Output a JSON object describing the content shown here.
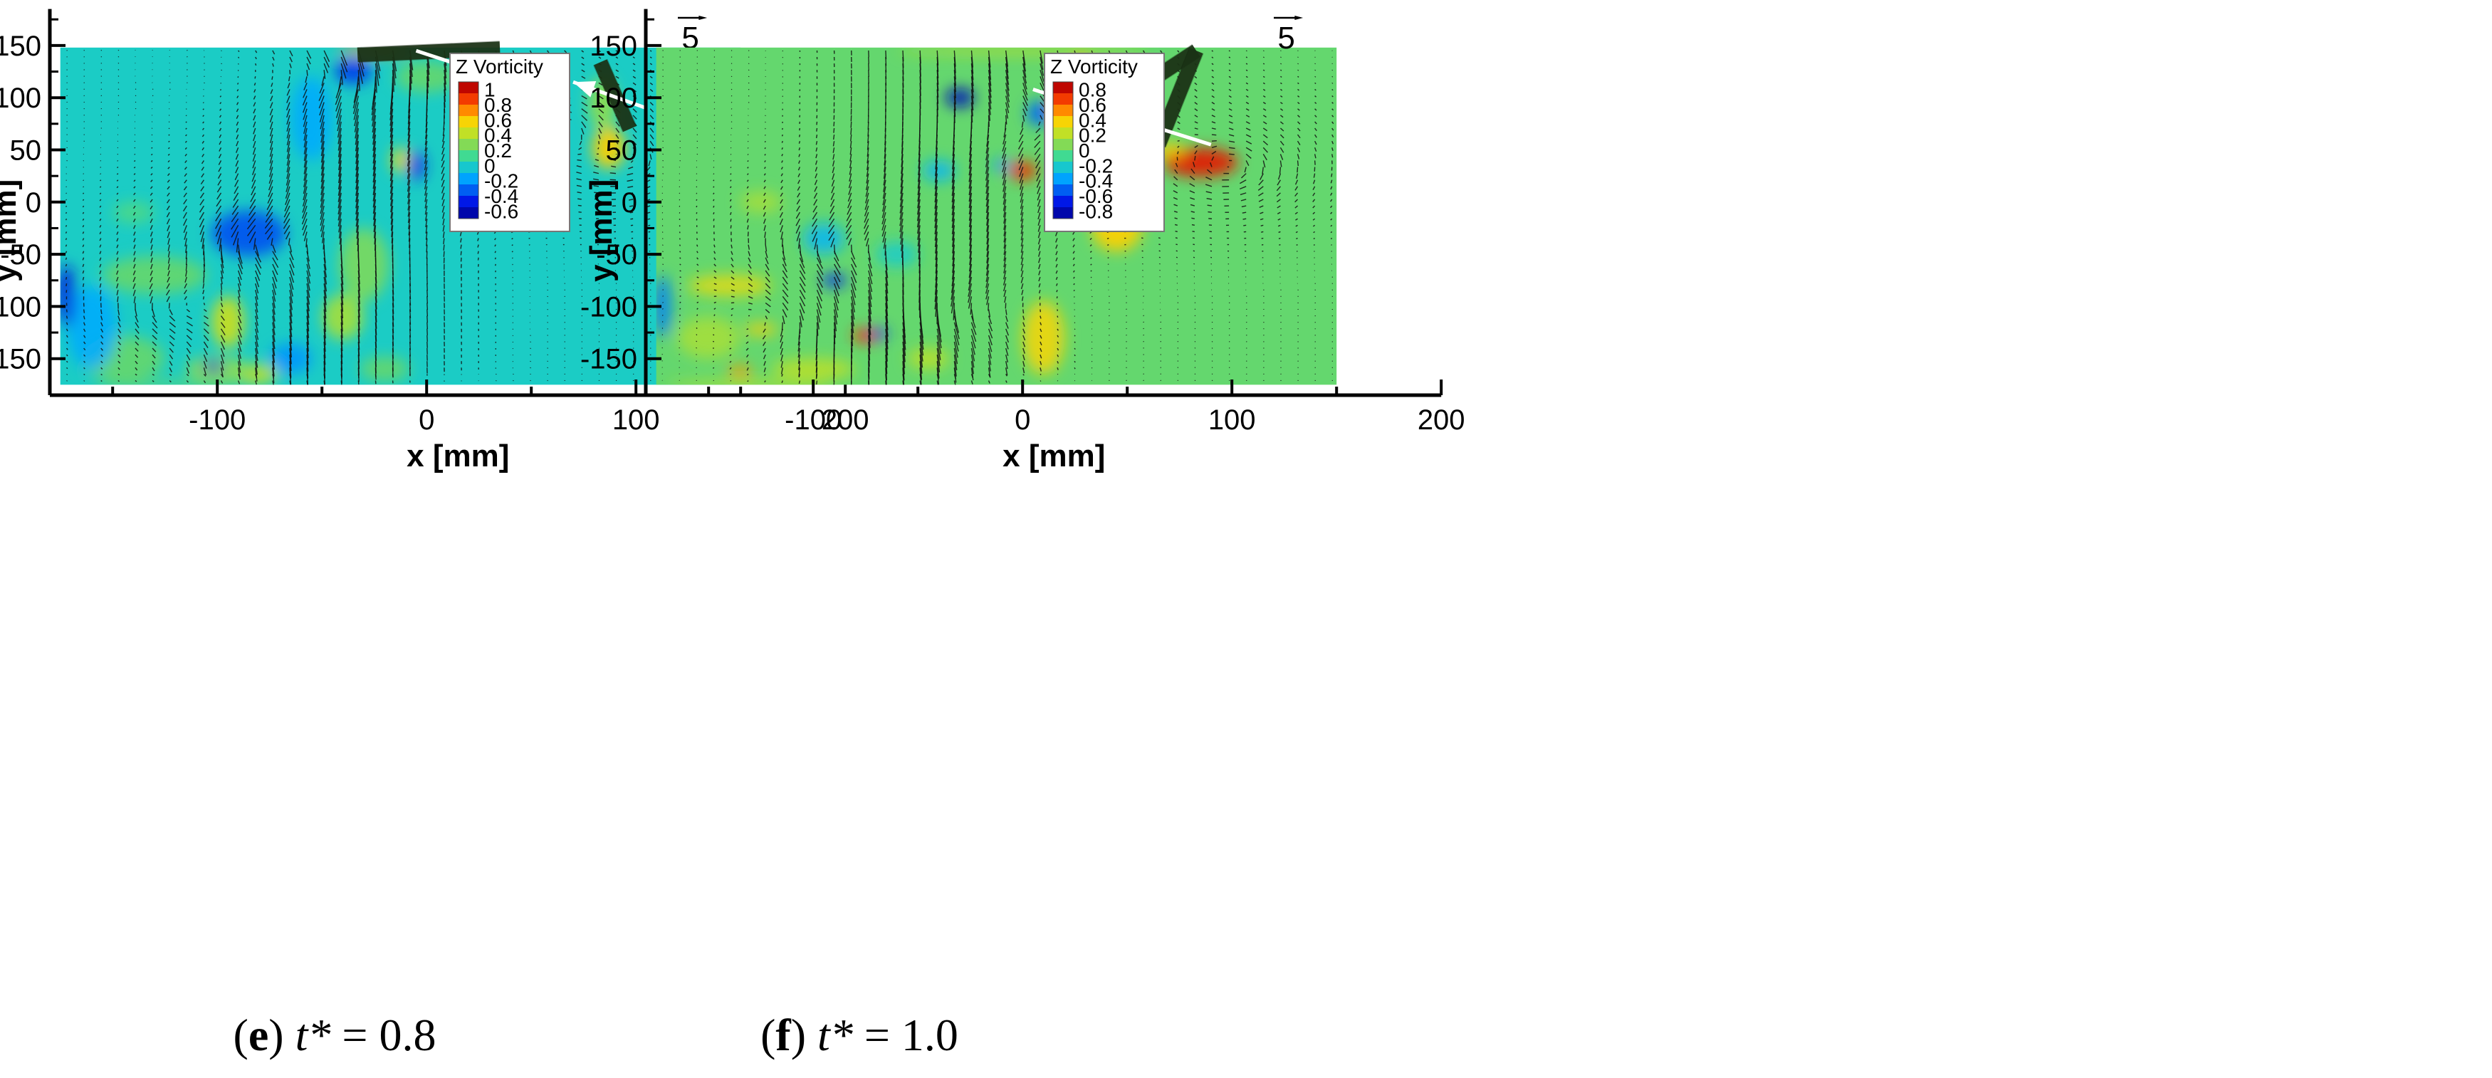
{
  "chart_data": [
    {
      "type": "vector-field-contour",
      "caption_letter": "e",
      "caption_rest": " = 0.8",
      "caption_var": "t*",
      "xlabel": "x [mm]",
      "ylabel": "y [mm]",
      "xlim": [
        -180,
        200
      ],
      "ylim": [
        -185,
        185
      ],
      "x_ticks": [
        -100,
        0,
        100,
        200
      ],
      "y_ticks": [
        150,
        100,
        50,
        0,
        -50,
        -100,
        -150
      ],
      "field_extent": {
        "x": [
          -175,
          150
        ],
        "y": [
          -175,
          148
        ]
      },
      "reference_vector_label": "5",
      "colorbar": {
        "title": "Z Vorticity",
        "levels": [
          "1",
          "0.8",
          "0.6",
          "0.4",
          "0.2",
          "0",
          "-0.2",
          "-0.4",
          "-0.6"
        ],
        "range": [
          -0.7,
          1.1
        ]
      },
      "plates": [
        {
          "x1": -33,
          "y1": 141,
          "x2": 35,
          "y2": 147
        },
        {
          "x1": 83,
          "y1": 134,
          "x2": 97,
          "y2": 70
        }
      ],
      "jets": [
        {
          "x1": -5,
          "y1": 145,
          "x2": 27,
          "y2": 124
        },
        {
          "x1": 105,
          "y1": 90,
          "x2": 70,
          "y2": 115
        }
      ],
      "blobs": [
        {
          "x": -25,
          "y": 145,
          "rx": 18,
          "ry": 4,
          "v": 0.7
        },
        {
          "x": -35,
          "y": 125,
          "rx": 9,
          "ry": 12,
          "v": -0.4
        },
        {
          "x": 87,
          "y": 52,
          "rx": 8,
          "ry": 20,
          "v": 0.6
        },
        {
          "x": 84,
          "y": 95,
          "rx": 7,
          "ry": 25,
          "v": 0.3
        },
        {
          "x": -12,
          "y": 40,
          "rx": 5,
          "ry": 12,
          "v": 0.5
        },
        {
          "x": -5,
          "y": 35,
          "rx": 4,
          "ry": 14,
          "v": -0.45
        },
        {
          "x": 40,
          "y": 8,
          "rx": 14,
          "ry": 10,
          "v": 0.45
        },
        {
          "x": 0,
          "y": 120,
          "rx": 15,
          "ry": 15,
          "v": 0.2
        },
        {
          "x": -55,
          "y": 80,
          "rx": 10,
          "ry": 40,
          "v": -0.15
        },
        {
          "x": -85,
          "y": -30,
          "rx": 18,
          "ry": 22,
          "v": -0.35
        },
        {
          "x": -130,
          "y": -70,
          "rx": 25,
          "ry": 18,
          "v": 0.2
        },
        {
          "x": -30,
          "y": -60,
          "rx": 12,
          "ry": 35,
          "v": 0.25
        },
        {
          "x": -40,
          "y": -110,
          "rx": 10,
          "ry": 22,
          "v": 0.35
        },
        {
          "x": -95,
          "y": -115,
          "rx": 8,
          "ry": 25,
          "v": 0.45
        },
        {
          "x": -100,
          "y": -160,
          "rx": 15,
          "ry": 12,
          "v": 0.3
        },
        {
          "x": -102,
          "y": -158,
          "rx": 5,
          "ry": 5,
          "v": -0.55
        },
        {
          "x": -80,
          "y": -165,
          "rx": 9,
          "ry": 10,
          "v": 0.4
        },
        {
          "x": -145,
          "y": -150,
          "rx": 20,
          "ry": 22,
          "v": 0.2
        },
        {
          "x": -160,
          "y": -120,
          "rx": 12,
          "ry": 40,
          "v": -0.15
        },
        {
          "x": -172,
          "y": -90,
          "rx": 4,
          "ry": 30,
          "v": -0.5
        },
        {
          "x": -140,
          "y": -10,
          "rx": 10,
          "ry": 10,
          "v": 0.15
        },
        {
          "x": -65,
          "y": -150,
          "rx": 10,
          "ry": 15,
          "v": -0.2
        },
        {
          "x": -20,
          "y": -160,
          "rx": 12,
          "ry": 12,
          "v": 0.2
        },
        {
          "x": -120,
          "y": -175,
          "rx": 40,
          "ry": 4,
          "v": 0.2
        }
      ],
      "vortices": [
        {
          "x": -80,
          "y": -35,
          "s": 1.0
        },
        {
          "x": 55,
          "y": 70,
          "s": -1.0
        },
        {
          "x": -40,
          "y": 125,
          "s": -0.8
        },
        {
          "x": -120,
          "y": -100,
          "s": 0.7
        },
        {
          "x": 100,
          "y": 40,
          "s": -0.6
        }
      ]
    },
    {
      "type": "vector-field-contour",
      "caption_letter": "f",
      "caption_rest": " = 1.0",
      "caption_var": "t*",
      "xlabel": "x [mm]",
      "ylabel": "y [mm]",
      "xlim": [
        -180,
        200
      ],
      "ylim": [
        -185,
        185
      ],
      "x_ticks": [
        -100,
        0,
        100,
        200
      ],
      "y_ticks": [
        150,
        100,
        50,
        0,
        -50,
        -100,
        -150
      ],
      "field_extent": {
        "x": [
          -175,
          150
        ],
        "y": [
          -175,
          148
        ]
      },
      "reference_vector_label": "5",
      "colorbar": {
        "title": "Z Vorticity",
        "levels": [
          "0.8",
          "0.6",
          "0.4",
          "0.2",
          "0",
          "-0.2",
          "-0.4",
          "-0.6",
          "-0.8"
        ],
        "range": [
          -0.9,
          0.9
        ]
      },
      "plates": [
        {
          "x1": 35,
          "y1": 82,
          "x2": 83,
          "y2": 145
        },
        {
          "x1": 83,
          "y1": 145,
          "x2": 65,
          "y2": 55
        }
      ],
      "jets": [
        {
          "x1": 5,
          "y1": 108,
          "x2": 45,
          "y2": 82
        },
        {
          "x1": 90,
          "y1": 55,
          "x2": 55,
          "y2": 77
        }
      ],
      "blobs": [
        {
          "x": -30,
          "y": 100,
          "rx": 7,
          "ry": 9,
          "v": -0.8
        },
        {
          "x": 20,
          "y": 90,
          "rx": 6,
          "ry": 8,
          "v": 0.7
        },
        {
          "x": 28,
          "y": 115,
          "rx": 6,
          "ry": 25,
          "v": 0.5
        },
        {
          "x": 8,
          "y": 85,
          "rx": 6,
          "ry": 12,
          "v": -0.5
        },
        {
          "x": 38,
          "y": 80,
          "rx": 5,
          "ry": 6,
          "v": -0.55
        },
        {
          "x": 85,
          "y": 38,
          "rx": 18,
          "ry": 14,
          "v": 0.75
        },
        {
          "x": 70,
          "y": 50,
          "rx": 8,
          "ry": 6,
          "v": 0.4
        },
        {
          "x": 0,
          "y": 30,
          "rx": 7,
          "ry": 9,
          "v": 0.7
        },
        {
          "x": -10,
          "y": 35,
          "rx": 4,
          "ry": 6,
          "v": -0.4
        },
        {
          "x": 45,
          "y": -25,
          "rx": 12,
          "ry": 22,
          "v": 0.4
        },
        {
          "x": -40,
          "y": 30,
          "rx": 8,
          "ry": 10,
          "v": -0.3
        },
        {
          "x": -125,
          "y": 0,
          "rx": 10,
          "ry": 10,
          "v": 0.15
        },
        {
          "x": -95,
          "y": -35,
          "rx": 10,
          "ry": 15,
          "v": -0.3
        },
        {
          "x": -90,
          "y": -75,
          "rx": 6,
          "ry": 6,
          "v": -0.65
        },
        {
          "x": -140,
          "y": -80,
          "rx": 20,
          "ry": 10,
          "v": 0.3
        },
        {
          "x": -125,
          "y": -122,
          "rx": 8,
          "ry": 5,
          "v": 0.4
        },
        {
          "x": -75,
          "y": -128,
          "rx": 6,
          "ry": 7,
          "v": 0.7
        },
        {
          "x": -68,
          "y": -126,
          "rx": 4,
          "ry": 5,
          "v": -0.6
        },
        {
          "x": 10,
          "y": -130,
          "rx": 10,
          "ry": 35,
          "v": 0.35
        },
        {
          "x": -45,
          "y": -150,
          "rx": 10,
          "ry": 10,
          "v": 0.2
        },
        {
          "x": -135,
          "y": -162,
          "rx": 6,
          "ry": 5,
          "v": 0.5
        },
        {
          "x": -172,
          "y": -100,
          "rx": 4,
          "ry": 30,
          "v": -0.45
        },
        {
          "x": -150,
          "y": -130,
          "rx": 15,
          "ry": 20,
          "v": 0.15
        },
        {
          "x": -100,
          "y": -160,
          "rx": 20,
          "ry": 10,
          "v": 0.2
        },
        {
          "x": -130,
          "y": -175,
          "rx": 40,
          "ry": 4,
          "v": 0.2
        },
        {
          "x": 0,
          "y": 145,
          "rx": 60,
          "ry": 3,
          "v": 0.25
        },
        {
          "x": -60,
          "y": -50,
          "rx": 10,
          "ry": 12,
          "v": -0.2
        }
      ],
      "vortices": [
        {
          "x": 20,
          "y": 80,
          "s": -1.0
        },
        {
          "x": 100,
          "y": 35,
          "s": -0.9
        },
        {
          "x": -90,
          "y": -40,
          "s": 0.8
        },
        {
          "x": -30,
          "y": -100,
          "s": 0.6
        },
        {
          "x": -120,
          "y": -110,
          "s": -0.5
        }
      ]
    }
  ]
}
